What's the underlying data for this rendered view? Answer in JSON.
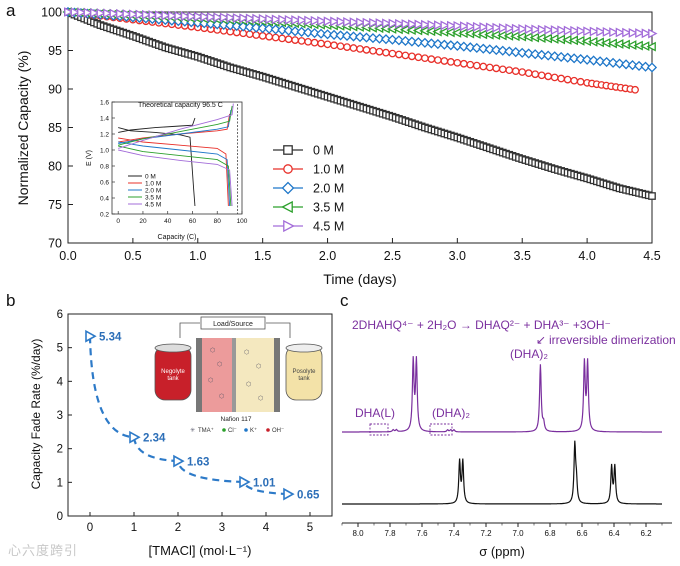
{
  "panel_labels": {
    "a": "a",
    "b": "b",
    "c": "c"
  },
  "colors": {
    "black": "#333333",
    "red": "#e8302a",
    "blue": "#1f77c9",
    "green": "#2ca02c",
    "purple": "#a36dd9",
    "nmr_purple": "#7a2f9e",
    "nmr_black": "#111111",
    "b_blue": "#2d7ac8",
    "b_label": "#2d6fb8"
  },
  "watermark": "心六度跨引",
  "chart_data": [
    {
      "id": "a",
      "type": "line",
      "xlabel": "Time (days)",
      "ylabel": "Normalized Capacity (%)",
      "xlim": [
        0,
        4.5
      ],
      "ylim": [
        70,
        100
      ],
      "xticks": [
        "0.0",
        "0.5",
        "1.0",
        "1.5",
        "2.0",
        "2.5",
        "3.0",
        "3.5",
        "4.0",
        "4.5"
      ],
      "yticks": [
        "70",
        "75",
        "80",
        "85",
        "90",
        "95",
        "100"
      ],
      "series": [
        {
          "name": "0 M",
          "marker": "square",
          "color": "#333333",
          "x": [
            0,
            0.25,
            0.5,
            0.75,
            1.0,
            1.25,
            1.5,
            1.75,
            2.0,
            2.25,
            2.5,
            2.75,
            3.0,
            3.25,
            3.5,
            3.75,
            4.0,
            4.25,
            4.5
          ],
          "y": [
            100,
            98.3,
            96.9,
            95.4,
            94.2,
            92.8,
            91.6,
            90.3,
            89.0,
            87.7,
            86.4,
            85.0,
            83.7,
            82.3,
            80.9,
            79.6,
            78.4,
            77.1,
            76.1
          ]
        },
        {
          "name": "1.0 M",
          "marker": "circle",
          "color": "#e8302a",
          "x": [
            0,
            0.5,
            1.0,
            1.5,
            2.0,
            2.5,
            3.0,
            3.5,
            4.0,
            4.37
          ],
          "y": [
            100,
            99.0,
            98.0,
            96.9,
            95.8,
            94.6,
            93.4,
            92.2,
            90.8,
            89.9
          ]
        },
        {
          "name": "2.0 M",
          "marker": "diamond",
          "color": "#1f77c9",
          "x": [
            0,
            0.5,
            1.0,
            1.5,
            2.0,
            2.5,
            3.0,
            3.5,
            4.0,
            4.5
          ],
          "y": [
            100,
            99.3,
            98.6,
            97.9,
            97.1,
            96.4,
            95.6,
            94.7,
            93.8,
            92.8
          ]
        },
        {
          "name": "3.5 M",
          "marker": "triangle-left",
          "color": "#2ca02c",
          "x": [
            0,
            0.5,
            1.0,
            1.5,
            2.0,
            2.5,
            3.0,
            3.5,
            4.0,
            4.5
          ],
          "y": [
            100,
            99.6,
            99.2,
            98.8,
            98.3,
            97.8,
            97.3,
            96.8,
            96.2,
            95.5
          ]
        },
        {
          "name": "4.5 M",
          "marker": "triangle-right",
          "color": "#a36dd9",
          "x": [
            0,
            0.5,
            1.0,
            1.5,
            2.0,
            2.5,
            3.0,
            3.5,
            4.0,
            4.5
          ],
          "y": [
            100,
            99.7,
            99.4,
            99.1,
            98.8,
            98.5,
            98.2,
            97.8,
            97.5,
            97.2
          ]
        }
      ],
      "legend": "right"
    },
    {
      "id": "a-inset",
      "type": "line",
      "xlabel": "Capacity (C)",
      "ylabel": "E (V)",
      "xlim": [
        -5,
        100
      ],
      "ylim": [
        0.2,
        1.6
      ],
      "xticks": [
        "0",
        "20",
        "40",
        "60",
        "80",
        "100"
      ],
      "yticks": [
        "0.2",
        "0.4",
        "0.6",
        "0.8",
        "1.0",
        "1.2",
        "1.4",
        "1.6"
      ],
      "annotation": "Theoretical capacity 96.5 C",
      "theoretical_capacity": 96.5,
      "series": [
        {
          "name": "0 M",
          "color": "#222222",
          "charge": [
            [
              0,
              1.22
            ],
            [
              10,
              1.25
            ],
            [
              30,
              1.28
            ],
            [
              50,
              1.3
            ],
            [
              60,
              1.31
            ],
            [
              62,
              1.4
            ]
          ],
          "discharge": [
            [
              0,
              1.28
            ],
            [
              10,
              1.24
            ],
            [
              30,
              1.22
            ],
            [
              50,
              1.19
            ],
            [
              58,
              1.16
            ],
            [
              61,
              0.5
            ],
            [
              62,
              0.3
            ]
          ]
        },
        {
          "name": "1.0 M",
          "color": "#e8302a",
          "charge": [
            [
              0,
              1.1
            ],
            [
              20,
              1.15
            ],
            [
              50,
              1.2
            ],
            [
              80,
              1.24
            ],
            [
              88,
              1.26
            ],
            [
              90,
              1.45
            ]
          ],
          "discharge": [
            [
              0,
              1.15
            ],
            [
              20,
              1.1
            ],
            [
              50,
              1.06
            ],
            [
              80,
              1.02
            ],
            [
              87,
              0.95
            ],
            [
              89,
              0.3
            ]
          ]
        },
        {
          "name": "2.0 M",
          "color": "#1f77c9",
          "charge": [
            [
              0,
              1.08
            ],
            [
              20,
              1.14
            ],
            [
              50,
              1.2
            ],
            [
              80,
              1.26
            ],
            [
              89,
              1.29
            ],
            [
              91,
              1.5
            ]
          ],
          "discharge": [
            [
              0,
              1.1
            ],
            [
              20,
              1.05
            ],
            [
              50,
              1.0
            ],
            [
              80,
              0.95
            ],
            [
              88,
              0.88
            ],
            [
              90,
              0.3
            ]
          ]
        },
        {
          "name": "3.5 M",
          "color": "#2ca02c",
          "charge": [
            [
              0,
              1.06
            ],
            [
              20,
              1.14
            ],
            [
              50,
              1.23
            ],
            [
              80,
              1.32
            ],
            [
              90,
              1.36
            ],
            [
              92,
              1.55
            ]
          ],
          "discharge": [
            [
              0,
              1.05
            ],
            [
              20,
              0.98
            ],
            [
              50,
              0.93
            ],
            [
              80,
              0.88
            ],
            [
              89,
              0.8
            ],
            [
              91,
              0.3
            ]
          ]
        },
        {
          "name": "4.5 M",
          "color": "#a36dd9",
          "charge": [
            [
              0,
              1.02
            ],
            [
              20,
              1.12
            ],
            [
              50,
              1.26
            ],
            [
              80,
              1.38
            ],
            [
              92,
              1.44
            ],
            [
              93,
              1.58
            ]
          ],
          "discharge": [
            [
              0,
              1.0
            ],
            [
              20,
              0.93
            ],
            [
              50,
              0.87
            ],
            [
              80,
              0.82
            ],
            [
              90,
              0.75
            ],
            [
              92,
              0.3
            ]
          ]
        }
      ],
      "legend": "bottom-left"
    },
    {
      "id": "b",
      "type": "scatter",
      "xlabel": "[TMACl] (mol·L⁻¹)",
      "ylabel": "Capacity Fade Rate (%/day)",
      "xlim": [
        -0.5,
        5.5
      ],
      "ylim": [
        0,
        6
      ],
      "xticks": [
        "0",
        "1",
        "2",
        "3",
        "4",
        "5"
      ],
      "yticks": [
        "0",
        "1",
        "2",
        "3",
        "4",
        "5",
        "6"
      ],
      "x": [
        0,
        1.0,
        2.0,
        3.5,
        4.5
      ],
      "y": [
        5.34,
        2.34,
        1.63,
        1.01,
        0.65
      ],
      "data_labels": [
        "5.34",
        "2.34",
        "1.63",
        "1.01",
        "0.65"
      ]
    },
    {
      "id": "c",
      "type": "line",
      "xlabel": "σ (ppm)",
      "xlim": [
        8.1,
        6.1
      ],
      "xticks": [
        "8.0",
        "7.8",
        "7.6",
        "7.4",
        "7.2",
        "7.0",
        "6.8",
        "6.6",
        "6.4",
        "6.2"
      ],
      "series": [
        {
          "name": "upper",
          "color": "#7a2f9e",
          "peaks_ppm": [
            7.65,
            7.63,
            6.85,
            6.58,
            6.56,
            7.78,
            7.42
          ]
        },
        {
          "name": "lower",
          "color": "#111111",
          "peaks_ppm": [
            7.36,
            7.34,
            6.64,
            6.42,
            6.4
          ]
        }
      ]
    }
  ],
  "inset_b": {
    "load_source": "Load/Source",
    "negolyte_tank": [
      "Negolyte",
      "tank"
    ],
    "posolyte_tank": [
      "Posolyte",
      "tank"
    ],
    "membrane": "Nafion 117",
    "legend": [
      "TMA⁺",
      "Cl⁻",
      "K⁺",
      "OH⁻"
    ]
  },
  "nmr": {
    "reaction": "2DHAHQ⁴⁻ + 2H₂O → DHAQ²⁻ + DHA³⁻ +3OH⁻",
    "note": "irreversible dimerization",
    "dimer_label": "(DHA)₂",
    "dha_l_label": "DHA(L)",
    "dimer_label_2": "(DHA)₂"
  }
}
